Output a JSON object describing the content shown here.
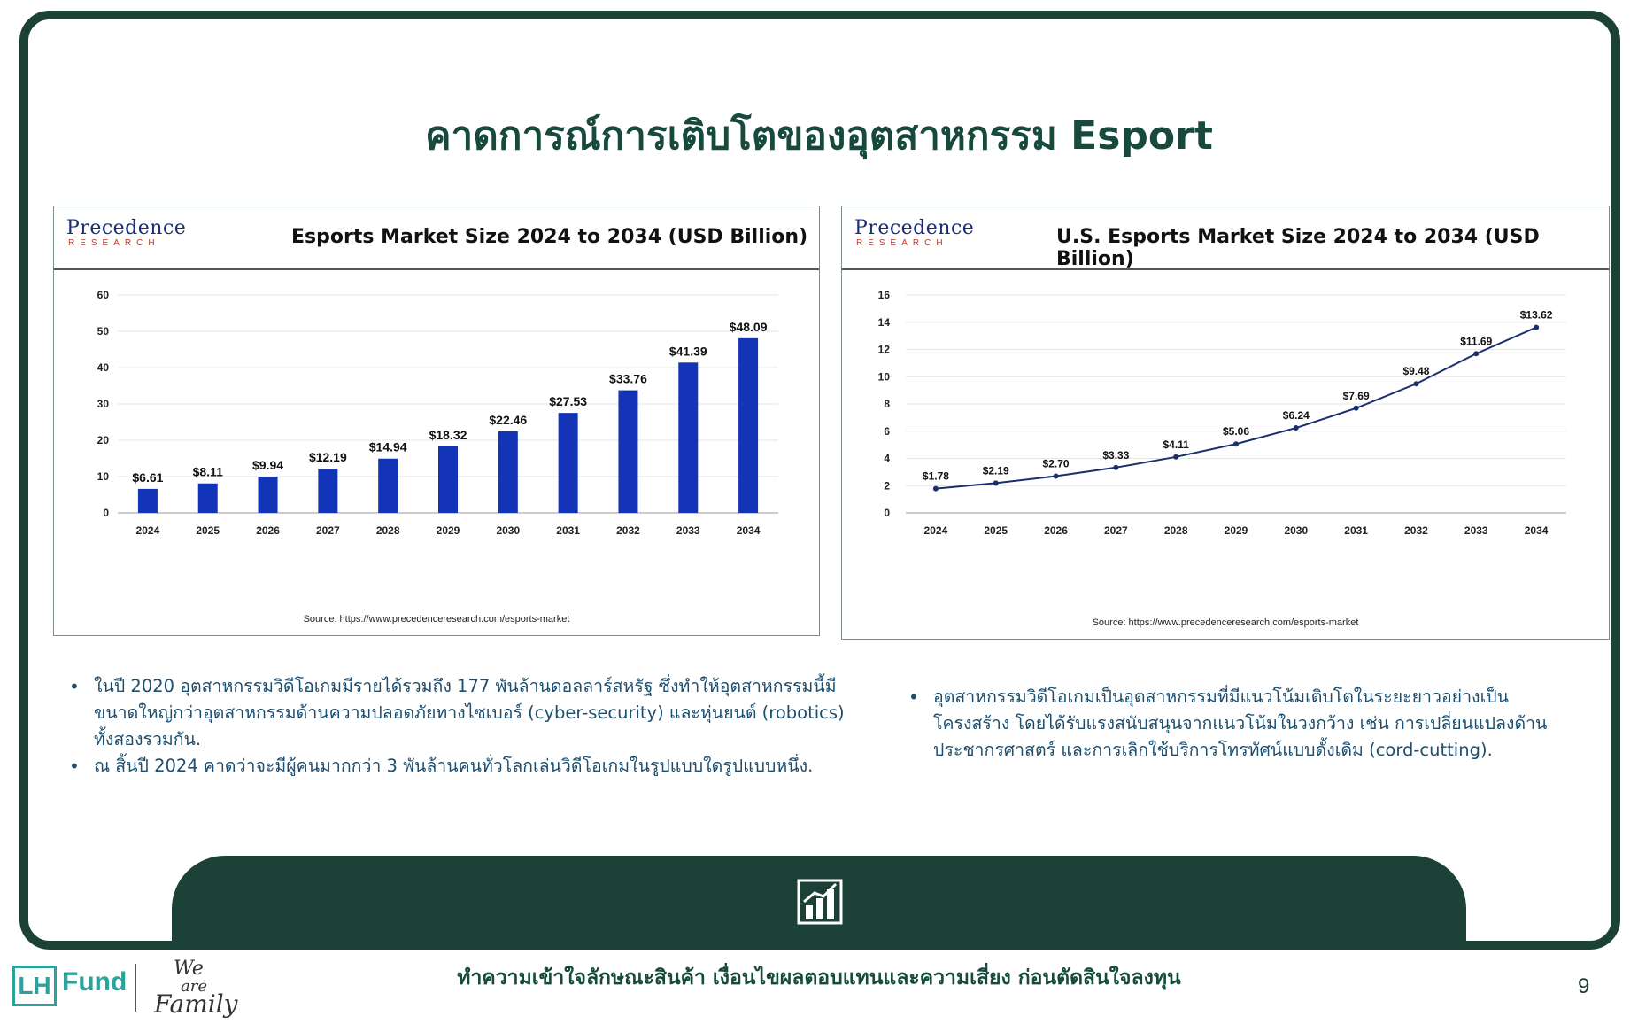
{
  "page": {
    "title": "คาดการณ์การเติบโตของอุตสาหกรรม Esport",
    "tagline": "ทำความเข้าใจลักษณะสินค้า เงื่อนไขผลตอบแทนและความเสี่ยง ก่อนตัดสินใจลงทุน",
    "page_number": "9"
  },
  "brand": {
    "lh": "LH",
    "fund": "Fund",
    "signature_line1": "We",
    "signature_line2": "are",
    "signature_line3": "Family"
  },
  "logo": {
    "top": "Precedence",
    "bottom": "RESEARCH"
  },
  "colors": {
    "bar": "#1434b8",
    "line": "#1a2f6e",
    "frame": "#1c4137",
    "title": "#17493c",
    "bullets": "#1d4e6e"
  },
  "chart_data": [
    {
      "type": "bar",
      "title": "Esports Market Size 2024 to 2034 (USD Billion)",
      "source": "Source: https://www.precedenceresearch.com/esports-market",
      "categories": [
        "2024",
        "2025",
        "2026",
        "2027",
        "2028",
        "2029",
        "2030",
        "2031",
        "2032",
        "2033",
        "2034"
      ],
      "values": [
        6.61,
        8.11,
        9.94,
        12.19,
        14.94,
        18.32,
        22.46,
        27.53,
        33.76,
        41.39,
        48.09
      ],
      "labels": [
        "$6.61",
        "$8.11",
        "$9.94",
        "$12.19",
        "$14.94",
        "$18.32",
        "$22.46",
        "$27.53",
        "$33.76",
        "$41.39",
        "$48.09"
      ],
      "yticks": [
        "0",
        "10",
        "20",
        "30",
        "40",
        "50",
        "60"
      ],
      "ylim": [
        0,
        60
      ],
      "xlabel": "",
      "ylabel": "",
      "grid": true
    },
    {
      "type": "line",
      "title": "U.S. Esports Market Size 2024 to 2034 (USD Billion)",
      "source": "Source: https://www.precedenceresearch.com/esports-market",
      "categories": [
        "2024",
        "2025",
        "2026",
        "2027",
        "2028",
        "2029",
        "2030",
        "2031",
        "2032",
        "2033",
        "2034"
      ],
      "values": [
        1.78,
        2.19,
        2.7,
        3.33,
        4.11,
        5.06,
        6.24,
        7.69,
        9.48,
        11.69,
        13.62
      ],
      "labels": [
        "$1.78",
        "$2.19",
        "$2.70",
        "$3.33",
        "$4.11",
        "$5.06",
        "$6.24",
        "$7.69",
        "$9.48",
        "$11.69",
        "$13.62"
      ],
      "yticks": [
        "0",
        "2",
        "4",
        "6",
        "8",
        "10",
        "12",
        "14",
        "16"
      ],
      "ylim": [
        0,
        16
      ],
      "xlabel": "",
      "ylabel": "",
      "grid": true
    }
  ],
  "bullets_left": [
    "ในปี 2020 อุตสาหกรรมวิดีโอเกมมีรายได้รวมถึง 177 พันล้านดอลลาร์สหรัฐ ซึ่งทำให้อุตสาหกรรมนี้มีขนาดใหญ่กว่าอุตสาหกรรมด้านความปลอดภัยทางไซเบอร์ (cyber-security) และหุ่นยนต์ (robotics) ทั้งสองรวมกัน.",
    "ณ สิ้นปี 2024 คาดว่าจะมีผู้คนมากกว่า 3 พันล้านคนทั่วโลกเล่นวิดีโอเกมในรูปแบบใดรูปแบบหนึ่ง."
  ],
  "bullets_right": [
    "อุตสาหกรรมวิดีโอเกมเป็นอุตสาหกรรมที่มีแนวโน้มเติบโตในระยะยาวอย่างเป็นโครงสร้าง โดยได้รับแรงสนับสนุนจากแนวโน้มในวงกว้าง เช่น การเปลี่ยนแปลงด้านประชากรศาสตร์ และการเลิกใช้บริการโทรทัศน์แบบดั้งเดิม (cord-cutting)."
  ],
  "icons": {
    "footer": "bar-chart-icon"
  }
}
